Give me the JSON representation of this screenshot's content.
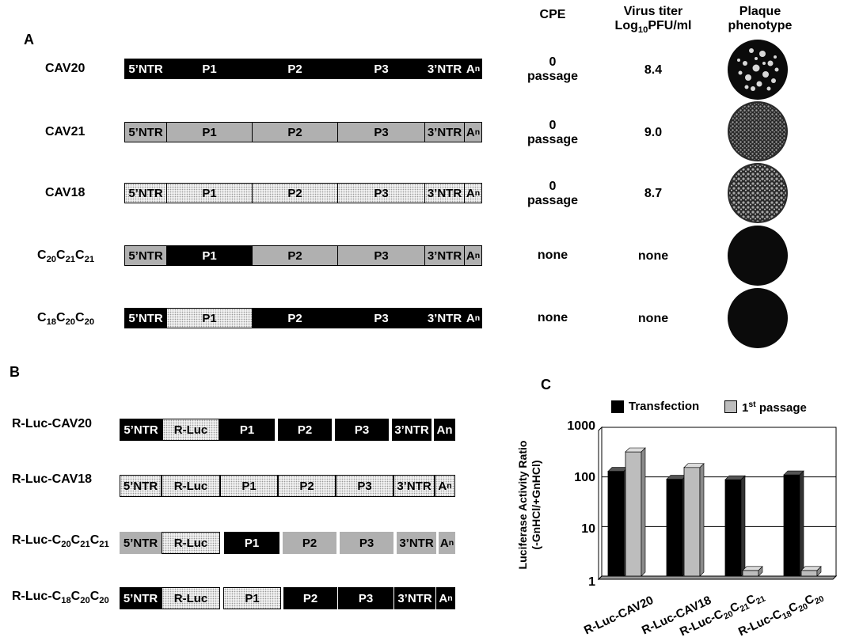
{
  "panels": {
    "a": "A",
    "b": "B",
    "c": "C"
  },
  "panel_a": {
    "headers": {
      "cpe": "CPE",
      "titer_line1": "Virus titer",
      "titer_line2": "Log",
      "titer_sub": "10",
      "titer_line2_suffix": "PFU/ml",
      "plaque_line1": "Plaque",
      "plaque_line2": "phenotype"
    },
    "segment_labels": {
      "ntr5": "5’NTR",
      "p1": "P1",
      "p2": "P2",
      "p3": "P3",
      "ntr3": "3’NTR",
      "an": "A",
      "an_sub": "n"
    },
    "rows": [
      {
        "name": "CAV20",
        "cpe_line1": "0",
        "cpe_line2": "passage",
        "titer": "8.4",
        "plaque": "small-white-plaques"
      },
      {
        "name": "CAV21",
        "cpe_line1": "0",
        "cpe_line2": "passage",
        "titer": "9.0",
        "plaque": "dense-gray-plaques"
      },
      {
        "name": "CAV18",
        "cpe_line1": "0",
        "cpe_line2": "passage",
        "titer": "8.7",
        "plaque": "dense-gray-plaques"
      },
      {
        "name_base": "C",
        "name_subs": [
          "20",
          "21",
          "21"
        ],
        "cpe_line1": "none",
        "titer": "none",
        "plaque": "no-plaques"
      },
      {
        "name_base": "C",
        "name_subs": [
          "18",
          "20",
          "20"
        ],
        "cpe_line1": "none",
        "titer": "none",
        "plaque": "no-plaques"
      }
    ]
  },
  "panel_b": {
    "segment_labels": {
      "ntr5": "5’NTR",
      "rluc": "R-Luc",
      "p1": "P1",
      "p2": "P2",
      "p3": "P3",
      "ntr3": "3’NTR",
      "an_plain": "An",
      "an": "A",
      "an_sub": "n"
    },
    "rows": [
      {
        "name": "R-Luc-CAV20"
      },
      {
        "name": "R-Luc-CAV18"
      },
      {
        "name_prefix": "R-Luc-C",
        "name_subs": [
          "20",
          "21",
          "21"
        ]
      },
      {
        "name_prefix": "R-Luc-C",
        "name_subs": [
          "18",
          "20",
          "20"
        ]
      }
    ]
  },
  "colors": {
    "cav20": "#000000",
    "cav21": "#b0b0b0",
    "cav18_dotted": "#f1f1f1",
    "transfection": "#000000",
    "first_passage": "#bdbdbd"
  },
  "chart_data": {
    "type": "bar",
    "ylabel_line1": "Luciferase Activity Ratio",
    "ylabel_line2": "(-GnHCl/+GnHCl)",
    "yscale": "log",
    "ylim": [
      1,
      1000
    ],
    "yticks": [
      "1",
      "10",
      "100",
      "1000"
    ],
    "grid": true,
    "legend_placement": "top",
    "legend": {
      "transfection": "Transfection",
      "passage_num": "1",
      "passage_sup": "st",
      "passage_suffix": " passage"
    },
    "categories": [
      {
        "prefix": "R-Luc-CAV20"
      },
      {
        "prefix": "R-Luc-CAV18"
      },
      {
        "prefix": "R-Luc-C",
        "subs": [
          "20",
          "21",
          "21"
        ]
      },
      {
        "prefix": "R-Luc-C",
        "subs": [
          "18",
          "20",
          "20"
        ]
      }
    ],
    "series": [
      {
        "values": [
          130,
          90,
          88,
          110
        ]
      },
      {
        "values": [
          320,
          155,
          1.3,
          1.3
        ]
      }
    ]
  }
}
